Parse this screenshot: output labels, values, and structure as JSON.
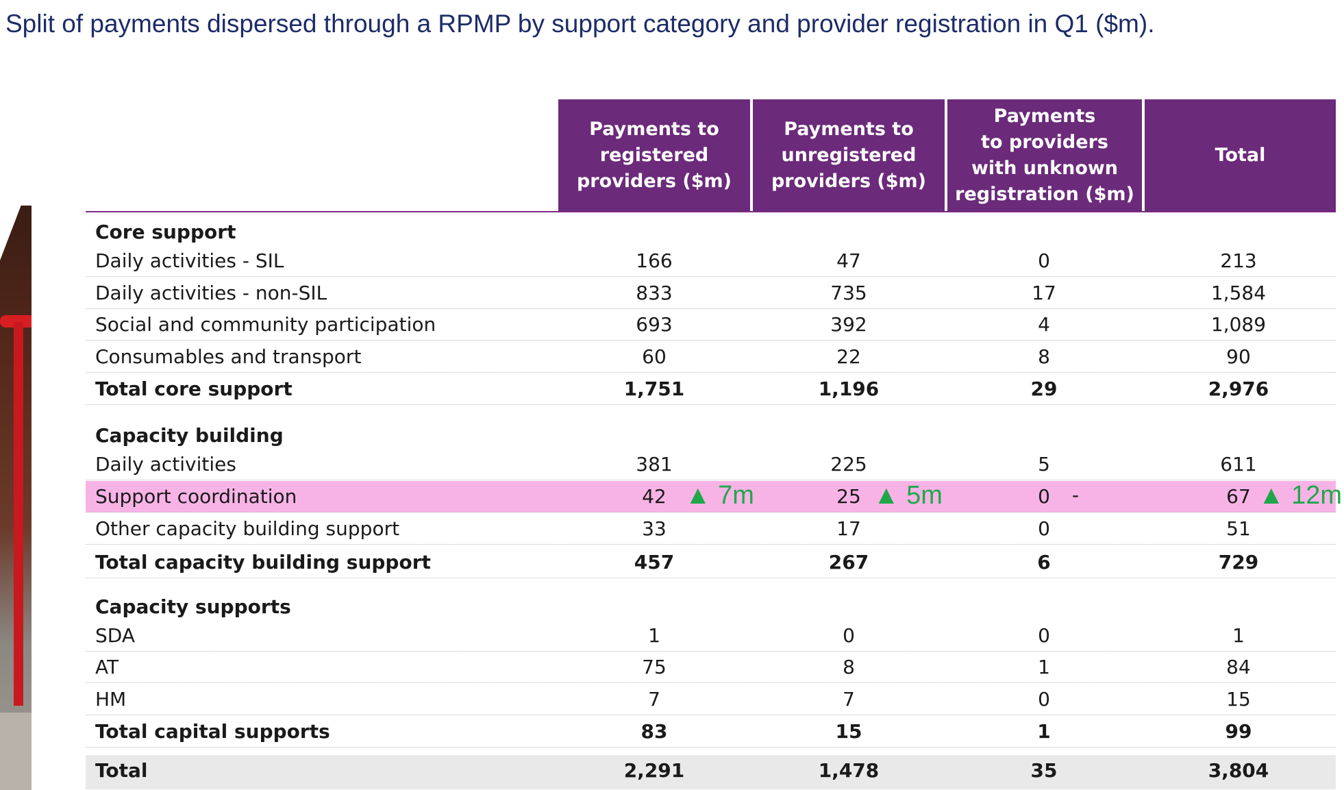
{
  "title": "Split of payments dispersed through a RPMP by support category and provider registration in Q1 ($m).",
  "columns": [
    "Payments to\nregistered\nproviders ($m)",
    "Payments to\nunregistered\nproviders ($m)",
    "Payments\nto providers\nwith unknown\nregistration ($m)",
    "Total"
  ],
  "rows": [
    {
      "kind": "cat",
      "label": "Core support"
    },
    {
      "kind": "data",
      "label": "Daily activities - SIL",
      "values": [
        "166",
        "47",
        "0",
        "213"
      ]
    },
    {
      "kind": "data",
      "label": "Daily activities - non-SIL",
      "values": [
        "833",
        "735",
        "17",
        "1,584"
      ]
    },
    {
      "kind": "data",
      "label": "Social and community participation",
      "values": [
        "693",
        "392",
        "4",
        "1,089"
      ]
    },
    {
      "kind": "data",
      "label": "Consumables and transport",
      "values": [
        "60",
        "22",
        "8",
        "90"
      ]
    },
    {
      "kind": "total",
      "label": "Total core support",
      "values": [
        "1,751",
        "1,196",
        "29",
        "2,976"
      ]
    },
    {
      "kind": "cat",
      "label": "Capacity building"
    },
    {
      "kind": "data",
      "label": "Daily activities",
      "values": [
        "381",
        "225",
        "5",
        "611"
      ]
    },
    {
      "kind": "hl",
      "label": "Support coordination",
      "values": [
        "42",
        "25",
        "0",
        "67"
      ],
      "deltas": [
        "▲ 7m",
        "▲ 5m",
        "-",
        "▲ 12m"
      ]
    },
    {
      "kind": "data",
      "label": "Other capacity building support",
      "values": [
        "33",
        "17",
        "0",
        "51"
      ]
    },
    {
      "kind": "total",
      "label": "Total capacity building support",
      "values": [
        "457",
        "267",
        "6",
        "729"
      ]
    },
    {
      "kind": "cat",
      "label": "Capacity supports"
    },
    {
      "kind": "data",
      "label": "SDA",
      "values": [
        "1",
        "0",
        "0",
        "1"
      ]
    },
    {
      "kind": "data",
      "label": "AT",
      "values": [
        "75",
        "8",
        "1",
        "84"
      ]
    },
    {
      "kind": "data",
      "label": "HM",
      "values": [
        "7",
        "7",
        "0",
        "15"
      ]
    },
    {
      "kind": "total",
      "label": "Total capital supports",
      "values": [
        "83",
        "15",
        "1",
        "99"
      ]
    },
    {
      "kind": "grand",
      "label": "Total",
      "values": [
        "2,291",
        "1,478",
        "35",
        "3,804"
      ]
    }
  ],
  "colors": {
    "header_bg": "#6b2a7a",
    "highlight_bg": "#f8b3e6",
    "delta_green": "#1fa84a",
    "title": "#1c2b68"
  }
}
